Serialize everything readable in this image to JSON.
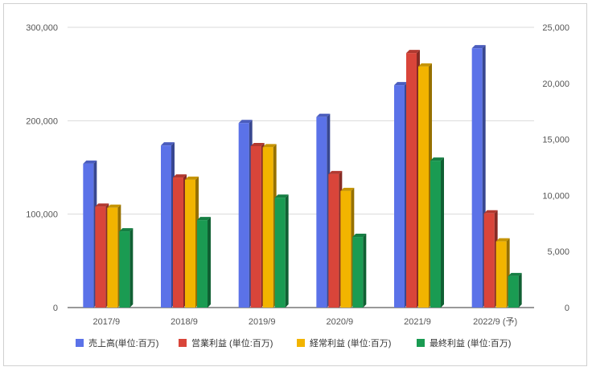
{
  "chart_data": {
    "type": "bar",
    "title": "",
    "categories": [
      "2017/9",
      "2018/9",
      "2019/9",
      "2020/9",
      "2021/9",
      "2022/9 (予)"
    ],
    "left_axis": {
      "ylim": [
        0,
        300000
      ],
      "ticks": [
        "0",
        "100,000",
        "200,000",
        "300,000"
      ]
    },
    "right_axis": {
      "ylim": [
        0,
        25000
      ],
      "ticks": [
        "0",
        "5,000",
        "10,000",
        "15,000",
        "20,000",
        "25,000"
      ]
    },
    "series": [
      {
        "name": "売上高(単位:百万)",
        "axis": "left",
        "color": "#5b72e8",
        "values": [
          154000,
          173500,
          197500,
          204000,
          238000,
          277500
        ]
      },
      {
        "name": "営業利益 (単位:百万)",
        "axis": "right",
        "color": "#d9453a",
        "values": [
          9000,
          11600,
          14400,
          11900,
          22700,
          8400
        ]
      },
      {
        "name": "経常利益 (単位:百万)",
        "axis": "right",
        "color": "#f2b400",
        "values": [
          8900,
          11400,
          14300,
          10400,
          21500,
          5900
        ]
      },
      {
        "name": "最終利益 (単位:百万)",
        "axis": "right",
        "color": "#1a9b52",
        "values": [
          6800,
          7800,
          9800,
          6300,
          13100,
          2800
        ]
      }
    ],
    "grid": true,
    "legend_position": "bottom"
  }
}
